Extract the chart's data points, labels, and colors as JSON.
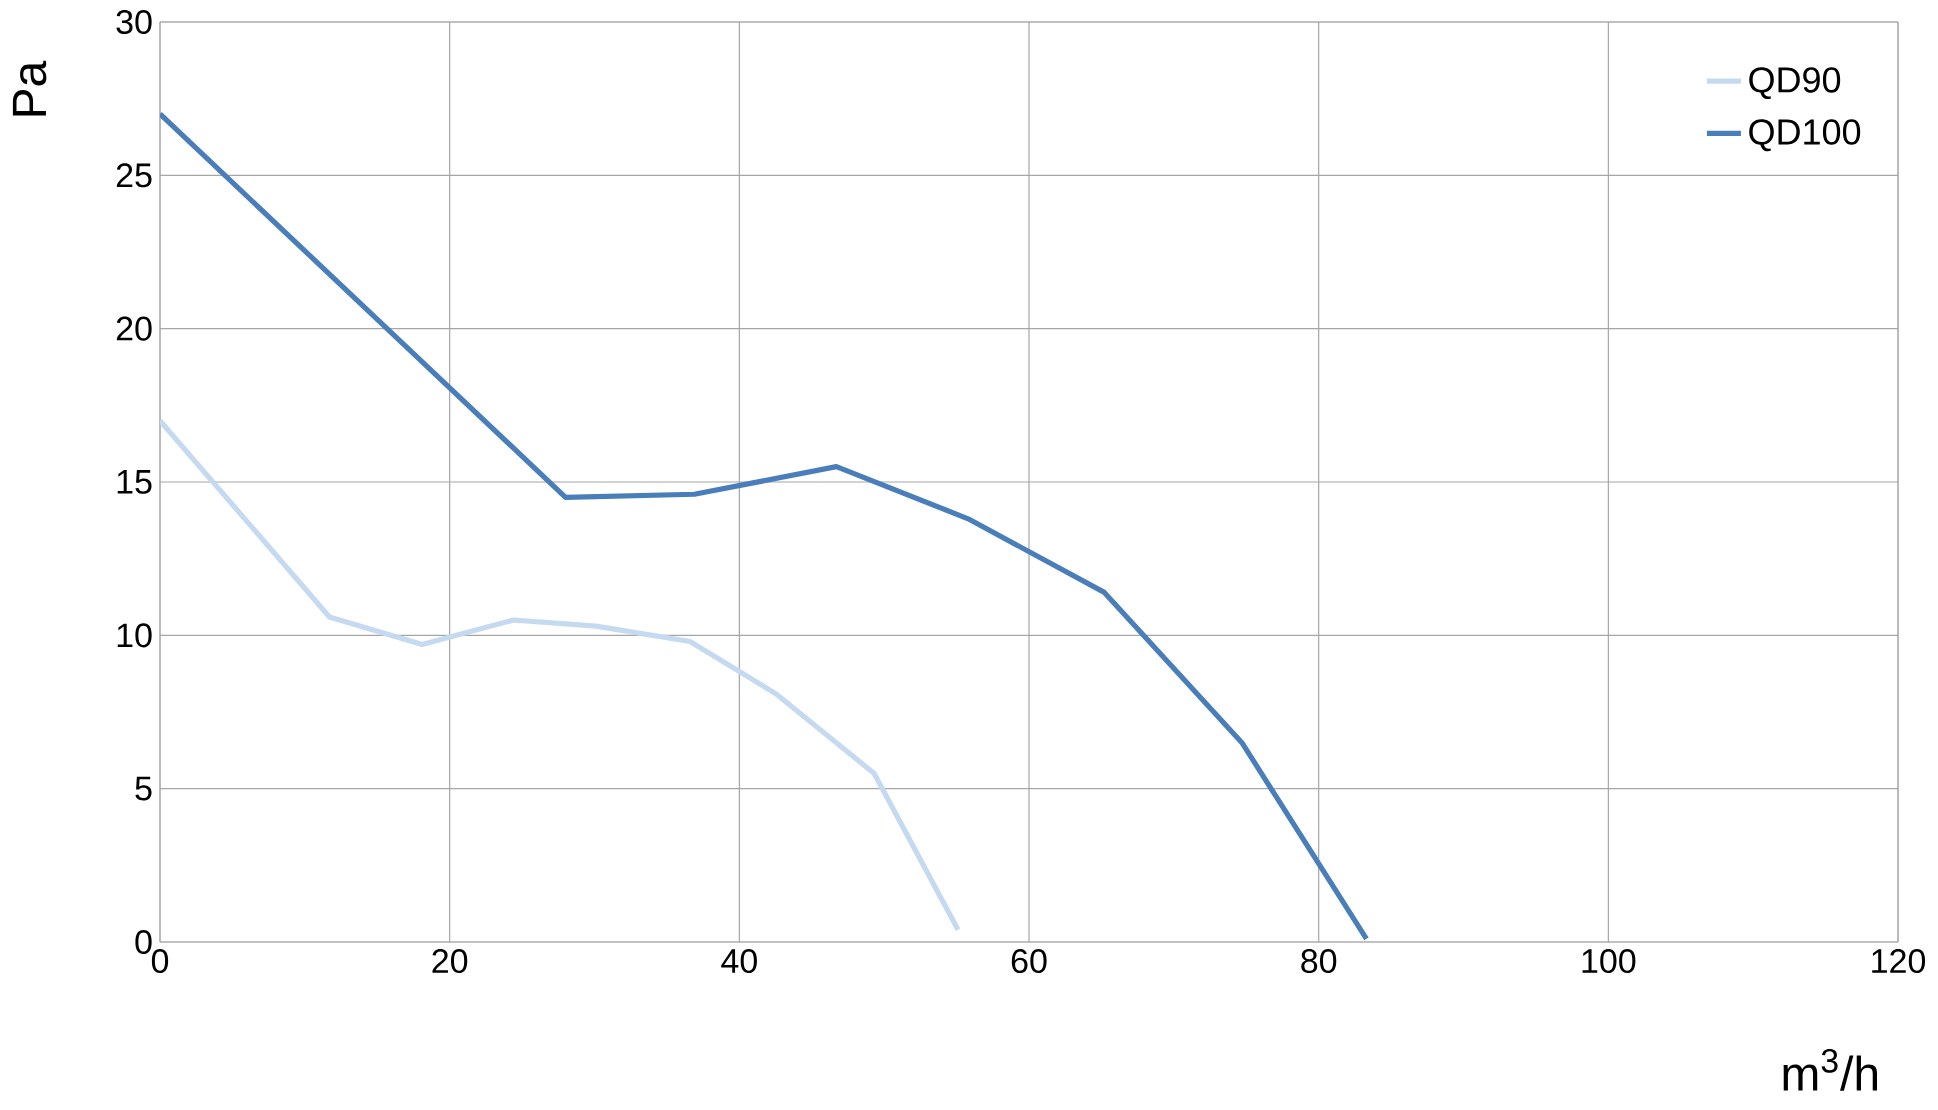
{
  "chart_data": {
    "type": "line",
    "xlabel": "m$^{3}$/h",
    "ylabel": "Pa",
    "xlim": [
      0,
      120
    ],
    "ylim": [
      0,
      30
    ],
    "xticks": [
      0,
      20,
      40,
      60,
      80,
      100,
      120
    ],
    "yticks": [
      0,
      5,
      10,
      15,
      20,
      25,
      30
    ],
    "grid": true,
    "legend": "top right",
    "series": [
      {
        "name": "QD90",
        "color": "#c5d9f1",
        "x": [
          0,
          11.7,
          18.1,
          24.4,
          30.1,
          36.6,
          42.5,
          49.3,
          55.1
        ],
        "values": [
          17.0,
          10.6,
          9.7,
          10.5,
          10.3,
          9.8,
          8.1,
          5.5,
          0.4
        ]
      },
      {
        "name": "QD100",
        "color": "#4a7ebb",
        "x": [
          0,
          28.0,
          36.9,
          46.7,
          55.8,
          65.2,
          74.7,
          83.3
        ],
        "values": [
          27.0,
          14.5,
          14.6,
          15.5,
          13.8,
          11.4,
          6.5,
          0.1
        ]
      }
    ]
  }
}
